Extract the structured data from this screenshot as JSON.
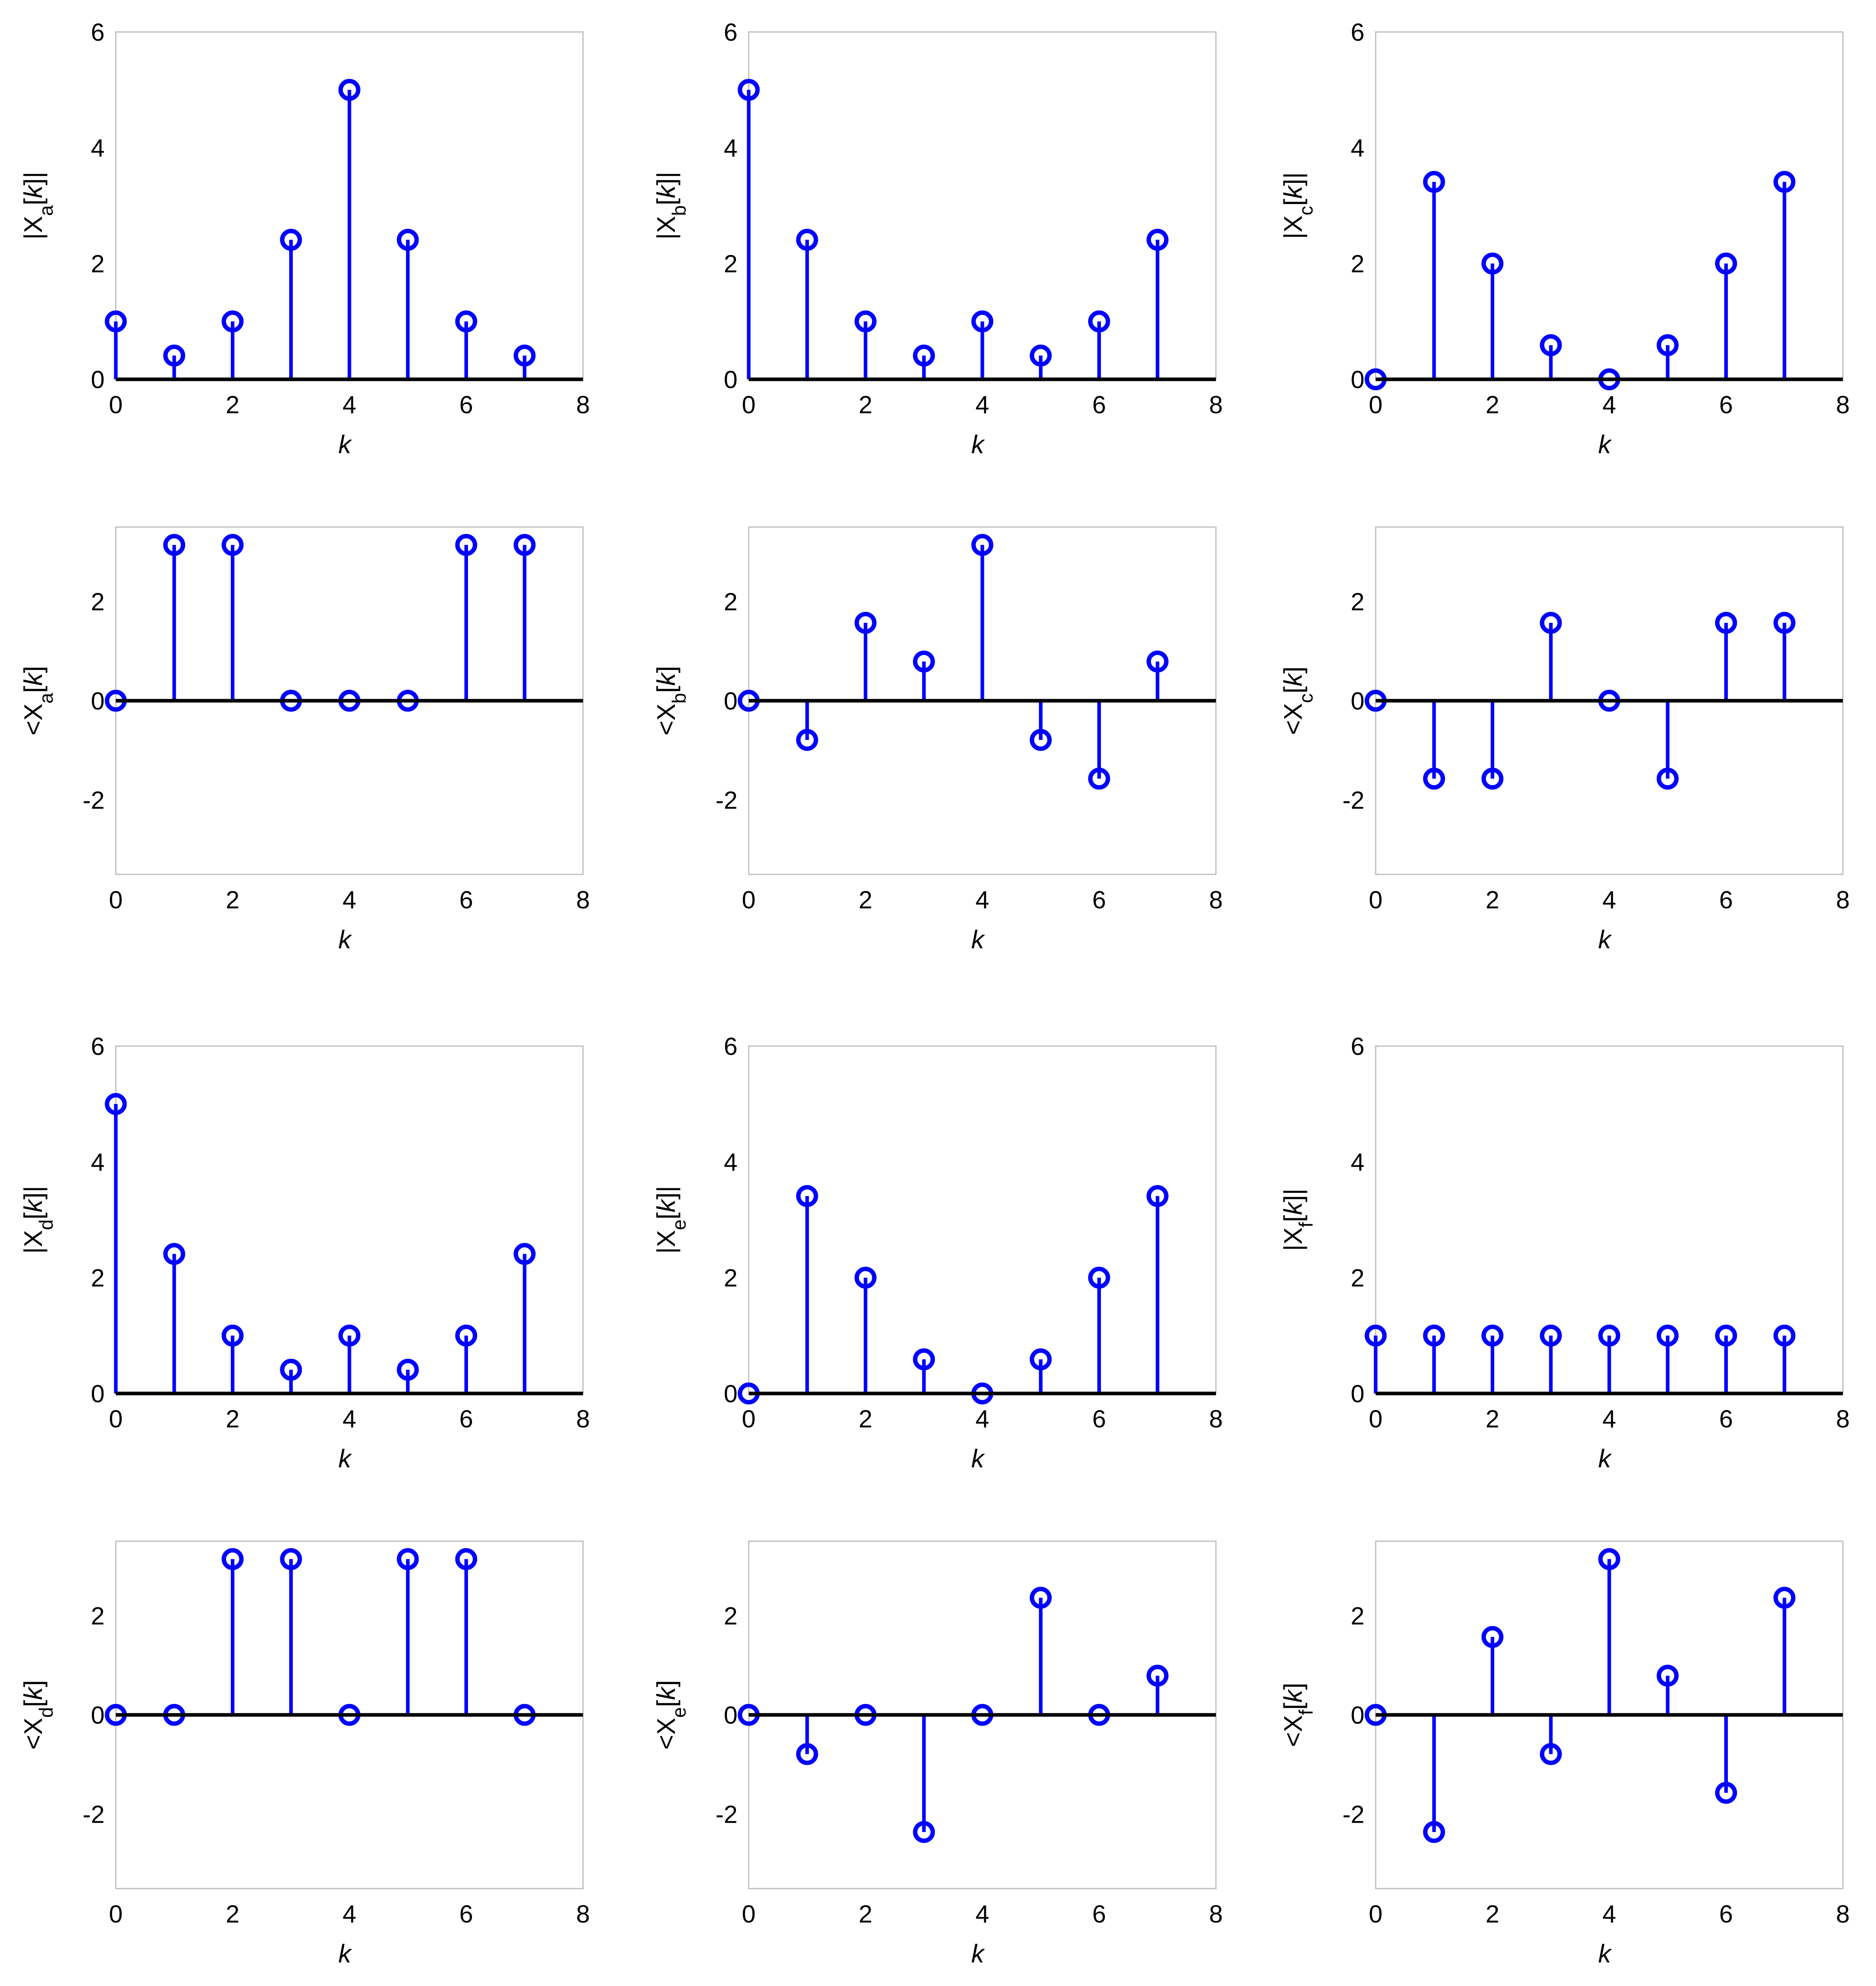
{
  "figure": {
    "stem_color": "#0000ff",
    "baseline_color": "#000000",
    "frame_color": "#bdbdbd",
    "marker": "open-circle"
  },
  "chart_data": [
    {
      "id": "mag-a",
      "type": "stem",
      "ylabel": {
        "pre": "|X",
        "sub": "a",
        "mid": "[",
        "var": "k",
        "post": "]|"
      },
      "xlabel": "k",
      "xlim": [
        0,
        8
      ],
      "ylim": [
        0,
        6
      ],
      "xticks": [
        "0",
        "2",
        "4",
        "6",
        "8"
      ],
      "yticks": [
        "0",
        "2",
        "4",
        "6"
      ],
      "x": [
        0,
        1,
        2,
        3,
        4,
        5,
        6,
        7
      ],
      "y": [
        1,
        0.41,
        1,
        2.41,
        5,
        2.41,
        1,
        0.41
      ]
    },
    {
      "id": "mag-b",
      "type": "stem",
      "ylabel": {
        "pre": "|X",
        "sub": "b",
        "mid": "[",
        "var": "k",
        "post": "]|"
      },
      "xlabel": "k",
      "xlim": [
        0,
        8
      ],
      "ylim": [
        0,
        6
      ],
      "xticks": [
        "0",
        "2",
        "4",
        "6",
        "8"
      ],
      "yticks": [
        "0",
        "2",
        "4",
        "6"
      ],
      "x": [
        0,
        1,
        2,
        3,
        4,
        5,
        6,
        7
      ],
      "y": [
        5,
        2.41,
        1,
        0.41,
        1,
        0.41,
        1,
        2.41
      ]
    },
    {
      "id": "mag-c",
      "type": "stem",
      "ylabel": {
        "pre": "|X",
        "sub": "c",
        "mid": "[",
        "var": "k",
        "post": "]|"
      },
      "xlabel": "k",
      "xlim": [
        0,
        8
      ],
      "ylim": [
        0,
        6
      ],
      "xticks": [
        "0",
        "2",
        "4",
        "6",
        "8"
      ],
      "yticks": [
        "0",
        "2",
        "4",
        "6"
      ],
      "x": [
        0,
        1,
        2,
        3,
        4,
        5,
        6,
        7
      ],
      "y": [
        0,
        3.41,
        2,
        0.59,
        0,
        0.59,
        2,
        3.41
      ]
    },
    {
      "id": "phase-a",
      "type": "stem",
      "ylabel": {
        "pre": "<X",
        "sub": "a",
        "mid": "[",
        "var": "k",
        "post": "]"
      },
      "xlabel": "k",
      "xlim": [
        0,
        8
      ],
      "ylim": [
        -3.5,
        3.5
      ],
      "xticks": [
        "0",
        "2",
        "4",
        "6",
        "8"
      ],
      "yticks": [
        "-2",
        "0",
        "2"
      ],
      "x": [
        0,
        1,
        2,
        3,
        4,
        5,
        6,
        7
      ],
      "y": [
        0,
        3.14,
        3.14,
        0,
        0,
        0,
        3.14,
        3.14
      ]
    },
    {
      "id": "phase-b",
      "type": "stem",
      "ylabel": {
        "pre": "<X",
        "sub": "b",
        "mid": "[",
        "var": "k",
        "post": "]"
      },
      "xlabel": "k",
      "xlim": [
        0,
        8
      ],
      "ylim": [
        -3.5,
        3.5
      ],
      "xticks": [
        "0",
        "2",
        "4",
        "6",
        "8"
      ],
      "yticks": [
        "-2",
        "0",
        "2"
      ],
      "x": [
        0,
        1,
        2,
        3,
        4,
        5,
        6,
        7
      ],
      "y": [
        0,
        -0.79,
        1.57,
        0.79,
        3.14,
        -0.79,
        -1.57,
        0.79
      ]
    },
    {
      "id": "phase-c",
      "type": "stem",
      "ylabel": {
        "pre": "<X",
        "sub": "c",
        "mid": "[",
        "var": "k",
        "post": "]"
      },
      "xlabel": "k",
      "xlim": [
        0,
        8
      ],
      "ylim": [
        -3.5,
        3.5
      ],
      "xticks": [
        "0",
        "2",
        "4",
        "6",
        "8"
      ],
      "yticks": [
        "-2",
        "0",
        "2"
      ],
      "x": [
        0,
        1,
        2,
        3,
        4,
        5,
        6,
        7
      ],
      "y": [
        0,
        -1.57,
        -1.57,
        1.57,
        0,
        -1.57,
        1.57,
        1.57
      ]
    },
    {
      "id": "mag-d",
      "type": "stem",
      "ylabel": {
        "pre": "|X",
        "sub": "d",
        "mid": "[",
        "var": "k",
        "post": "]|"
      },
      "xlabel": "k",
      "xlim": [
        0,
        8
      ],
      "ylim": [
        0,
        6
      ],
      "xticks": [
        "0",
        "2",
        "4",
        "6",
        "8"
      ],
      "yticks": [
        "0",
        "2",
        "4",
        "6"
      ],
      "x": [
        0,
        1,
        2,
        3,
        4,
        5,
        6,
        7
      ],
      "y": [
        5,
        2.41,
        1,
        0.41,
        1,
        0.41,
        1,
        2.41
      ]
    },
    {
      "id": "mag-e",
      "type": "stem",
      "ylabel": {
        "pre": "|X",
        "sub": "e",
        "mid": "[",
        "var": "k",
        "post": "]|"
      },
      "xlabel": "k",
      "xlim": [
        0,
        8
      ],
      "ylim": [
        0,
        6
      ],
      "xticks": [
        "0",
        "2",
        "4",
        "6",
        "8"
      ],
      "yticks": [
        "0",
        "2",
        "4",
        "6"
      ],
      "x": [
        0,
        1,
        2,
        3,
        4,
        5,
        6,
        7
      ],
      "y": [
        0,
        3.41,
        2,
        0.59,
        0,
        0.59,
        2,
        3.41
      ]
    },
    {
      "id": "mag-f",
      "type": "stem",
      "ylabel": {
        "pre": "|X",
        "sub": "f",
        "mid": "[",
        "var": "k",
        "post": "]|"
      },
      "xlabel": "k",
      "xlim": [
        0,
        8
      ],
      "ylim": [
        0,
        6
      ],
      "xticks": [
        "0",
        "2",
        "4",
        "6",
        "8"
      ],
      "yticks": [
        "0",
        "2",
        "4",
        "6"
      ],
      "x": [
        0,
        1,
        2,
        3,
        4,
        5,
        6,
        7
      ],
      "y": [
        1,
        1,
        1,
        1,
        1,
        1,
        1,
        1
      ]
    },
    {
      "id": "phase-d",
      "type": "stem",
      "ylabel": {
        "pre": "<X",
        "sub": "d",
        "mid": "[",
        "var": "k",
        "post": "]"
      },
      "xlabel": "k",
      "xlim": [
        0,
        8
      ],
      "ylim": [
        -3.5,
        3.5
      ],
      "xticks": [
        "0",
        "2",
        "4",
        "6",
        "8"
      ],
      "yticks": [
        "-2",
        "0",
        "2"
      ],
      "x": [
        0,
        1,
        2,
        3,
        4,
        5,
        6,
        7
      ],
      "y": [
        0,
        0,
        3.14,
        3.14,
        0,
        3.14,
        3.14,
        0
      ]
    },
    {
      "id": "phase-e",
      "type": "stem",
      "ylabel": {
        "pre": "<X",
        "sub": "e",
        "mid": "[",
        "var": "k",
        "post": "]"
      },
      "xlabel": "k",
      "xlim": [
        0,
        8
      ],
      "ylim": [
        -3.5,
        3.5
      ],
      "xticks": [
        "0",
        "2",
        "4",
        "6",
        "8"
      ],
      "yticks": [
        "-2",
        "0",
        "2"
      ],
      "x": [
        0,
        1,
        2,
        3,
        4,
        5,
        6,
        7
      ],
      "y": [
        0,
        -0.79,
        0,
        -2.36,
        0,
        2.36,
        0,
        0.79
      ]
    },
    {
      "id": "phase-f",
      "type": "stem",
      "ylabel": {
        "pre": "<X",
        "sub": "f",
        "mid": "[",
        "var": "k",
        "post": "]"
      },
      "xlabel": "k",
      "xlim": [
        0,
        8
      ],
      "ylim": [
        -3.5,
        3.5
      ],
      "xticks": [
        "0",
        "2",
        "4",
        "6",
        "8"
      ],
      "yticks": [
        "-2",
        "0",
        "2"
      ],
      "x": [
        0,
        1,
        2,
        3,
        4,
        5,
        6,
        7
      ],
      "y": [
        0,
        -2.36,
        1.57,
        -0.79,
        3.14,
        0.79,
        -1.57,
        2.36
      ]
    }
  ]
}
